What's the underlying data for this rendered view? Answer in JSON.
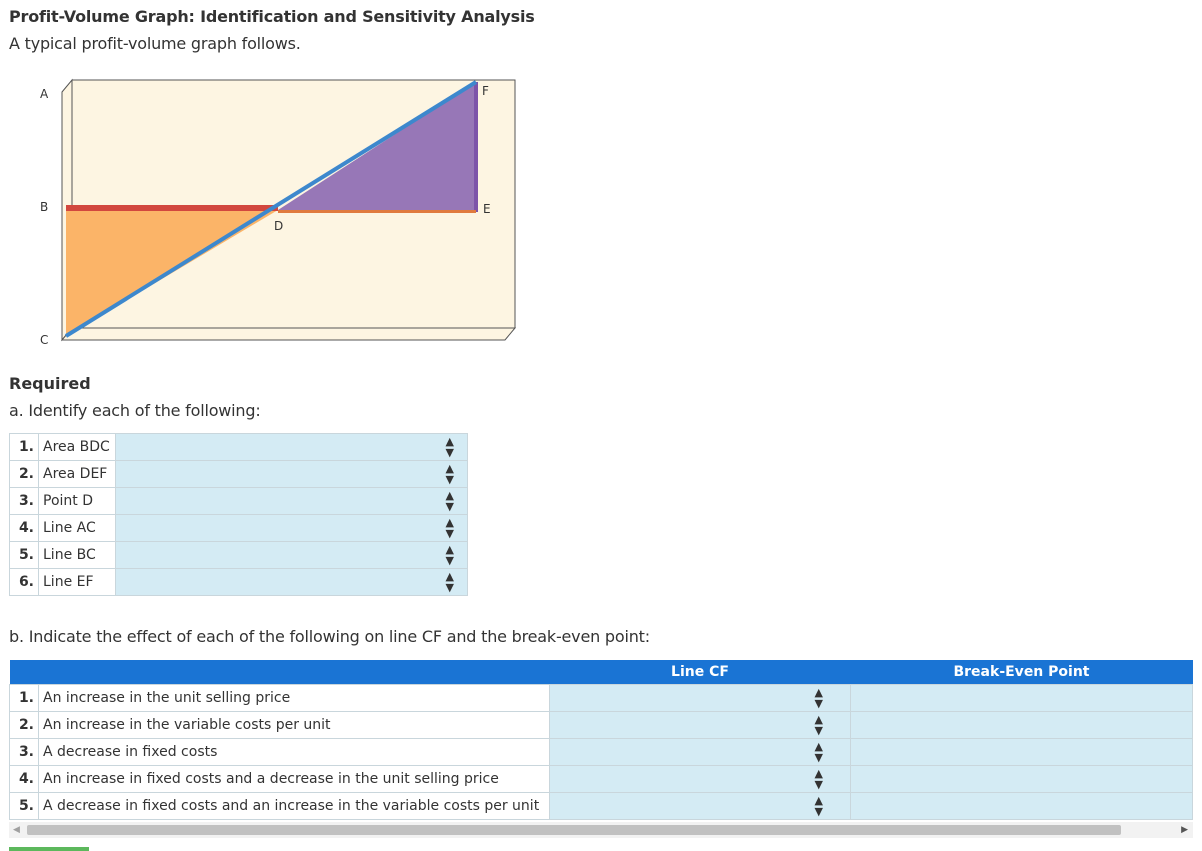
{
  "header": {
    "title": "Profit-Volume Graph: Identification and Sensitivity Analysis",
    "subtitle": "A typical profit-volume graph follows."
  },
  "graph": {
    "point_labels": {
      "A": "A",
      "B": "B",
      "C": "C",
      "D": "D",
      "E": "E",
      "F": "F"
    },
    "colors": {
      "background": "#fdf5e2",
      "loss_area": "#fbb468",
      "profit_area": "#9777b7",
      "line_cf": "#3d88cd",
      "line_be": "#d2473e",
      "axis": "#555555"
    }
  },
  "required": {
    "heading": "Required",
    "part_a_label": "a. Identify each of the following:",
    "part_a_items": [
      {
        "num": "1.",
        "label": "Area BDC"
      },
      {
        "num": "2.",
        "label": "Area DEF"
      },
      {
        "num": "3.",
        "label": "Point D"
      },
      {
        "num": "4.",
        "label": "Line AC"
      },
      {
        "num": "5.",
        "label": "Line BC"
      },
      {
        "num": "6.",
        "label": "Line EF"
      }
    ],
    "part_b_label": "b. Indicate the effect of each of the following on line CF and the break-even point:",
    "part_b_headers": {
      "col1": "Line CF",
      "col2": "Break-Even Point"
    },
    "part_b_items": [
      {
        "num": "1.",
        "label": "An increase in the unit selling price"
      },
      {
        "num": "2.",
        "label": "An increase in the variable costs per unit"
      },
      {
        "num": "3.",
        "label": "A decrease in fixed costs"
      },
      {
        "num": "4.",
        "label": "An increase in fixed costs and a decrease in the unit selling price"
      },
      {
        "num": "5.",
        "label": "A decrease in fixed costs and an increase in the variable costs per unit"
      }
    ],
    "dropdown_icon": "updown-arrow-icon"
  }
}
